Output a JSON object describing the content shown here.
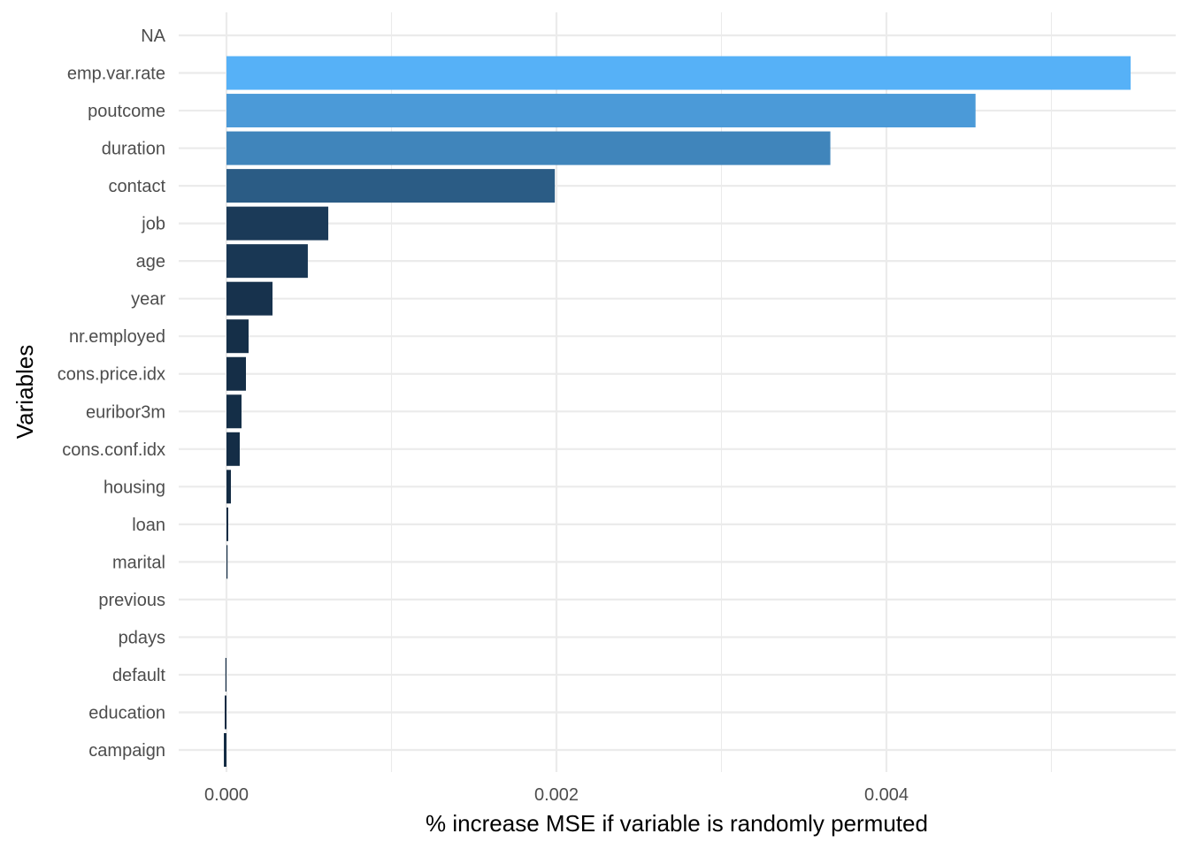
{
  "chart_data": {
    "type": "bar",
    "orientation": "horizontal",
    "title": "",
    "xlabel": "% increase MSE if variable is randomly permuted",
    "ylabel": "Variables",
    "xlim": [
      -5e-05,
      0.00575
    ],
    "x_ticks": [
      0.0,
      0.002,
      0.004
    ],
    "x_tick_labels": [
      "0.000",
      "0.002",
      "0.004"
    ],
    "x_minor_ticks": [
      0.001,
      0.003,
      0.005
    ],
    "grid": true,
    "legend": "none",
    "color_scale": {
      "low": "#132B43",
      "high": "#56B1F7"
    },
    "categories": [
      "NA",
      "emp.var.rate",
      "poutcome",
      "duration",
      "contact",
      "job",
      "age",
      "year",
      "nr.employed",
      "cons.price.idx",
      "euribor3m",
      "cons.conf.idx",
      "housing",
      "loan",
      "marital",
      "previous",
      "pdays",
      "default",
      "education",
      "campaign"
    ],
    "values": [
      null,
      0.00548,
      0.00454,
      0.00366,
      0.00199,
      0.000617,
      0.000493,
      0.000279,
      0.000134,
      0.000118,
      9.12e-05,
      8.04e-05,
      2.68e-05,
      1.07e-05,
      5.4e-06,
      0,
      0,
      -5.4e-06,
      -1.07e-05,
      -1.6e-05
    ]
  }
}
